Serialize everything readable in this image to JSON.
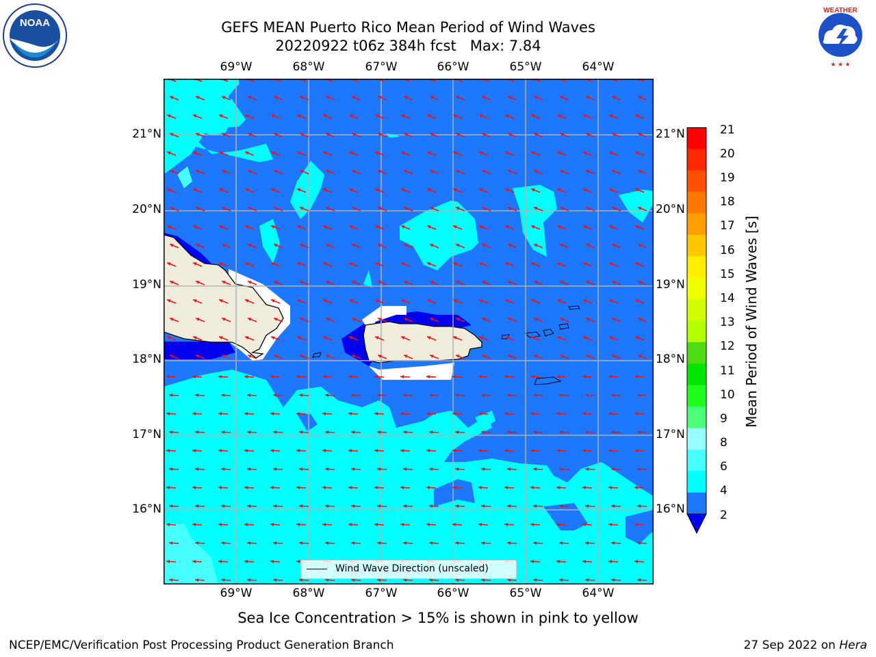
{
  "title": {
    "line1": "GEFS MEAN Puerto Rico Mean Period of Wind Waves",
    "line2": "20220922 t06z 384h fcst   Max: 7.84"
  },
  "map": {
    "lon_labels": [
      "69°W",
      "68°W",
      "67°W",
      "66°W",
      "65°W",
      "64°W"
    ],
    "lat_labels": [
      "21°N",
      "20°N",
      "19°N",
      "18°N",
      "17°N",
      "16°N"
    ],
    "legend_text": "Wind Wave Direction (unscaled)",
    "colors": {
      "band_2_4": "#1e78ff",
      "band_4_6": "#00ffff",
      "band_6_8": "#48ffff",
      "band_8_9": "#96ffff",
      "under": "#0000ee",
      "land": "#f0ecdc",
      "arrow": "#ee1111",
      "grid": "#b0b0b0"
    }
  },
  "colorbar": {
    "label": "Mean Period of Wind Waves [s]",
    "ticks": [
      "21",
      "20",
      "19",
      "18",
      "17",
      "16",
      "15",
      "14",
      "13",
      "12",
      "11",
      "10",
      "9",
      "8",
      "6",
      "4",
      "2"
    ],
    "colors": [
      "#ff0000",
      "#ff2800",
      "#ff5000",
      "#ff7800",
      "#ffa000",
      "#ffc800",
      "#ffee00",
      "#f0ff00",
      "#d2ff00",
      "#b4ff00",
      "#50dc14",
      "#00e600",
      "#1eff1e",
      "#4bff78",
      "#96ffff",
      "#48ffff",
      "#00ffff",
      "#1e78ff",
      "#0000ee"
    ]
  },
  "caption": "Sea Ice Concentration > 15% is shown in pink to yellow",
  "footer": {
    "left": "NCEP/EMC/Verification Post Processing Product Generation Branch",
    "right_prefix": "27 Sep 2022 on ",
    "right_host": "Hera"
  },
  "logos": {
    "noaa": "NOAA",
    "nws": "NATIONAL WEATHER SERVICE"
  }
}
